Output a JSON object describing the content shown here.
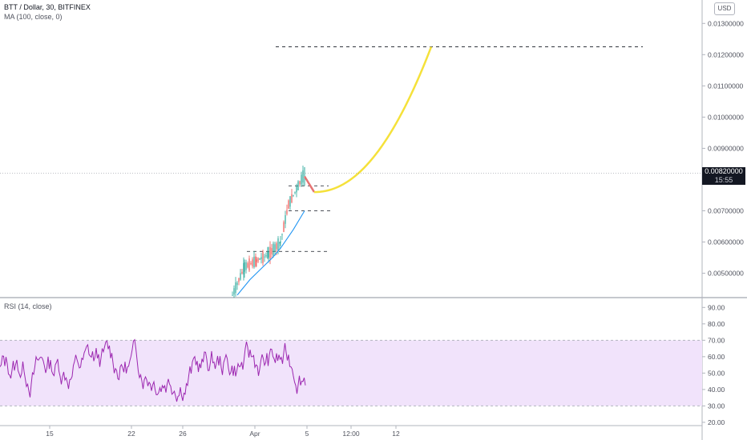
{
  "header": {
    "title": "BTT / Dollar, 30, BITFINEX",
    "ma_label": "MA (100, close, 0)",
    "currency": "USD"
  },
  "price_pane": {
    "last_price": "0.00820000",
    "countdown": "15:55",
    "y_ticks": [
      "0.01300000",
      "0.01200000",
      "0.01100000",
      "0.01000000",
      "0.00900000",
      "0.00700000",
      "0.00600000",
      "0.00500000"
    ],
    "y_tick_values": [
      0.013,
      0.012,
      0.011,
      0.01,
      0.009,
      0.007,
      0.006,
      0.005
    ],
    "last_price_value": 0.0082,
    "levels": [
      {
        "price": 0.01225,
        "from": "Apr 5",
        "to": "Apr 14"
      },
      {
        "price": 0.0078,
        "from": "Apr 4",
        "to": "Apr 5"
      },
      {
        "price": 0.007,
        "from": "Apr 4",
        "to": "Apr 5"
      },
      {
        "price": 0.0057,
        "from": "Mar 30",
        "to": "Apr 5"
      }
    ],
    "projection_color": "#f5e13a",
    "drop_color": "#e57373",
    "ma_color": "#2196f3",
    "candle_up_color": "#26a69a",
    "candle_down_color": "#ef5350"
  },
  "rsi_pane": {
    "label": "RSI (14, close)",
    "y_ticks": [
      "90.00",
      "80.00",
      "70.00",
      "60.00",
      "50.00",
      "40.00",
      "30.00",
      "20.00"
    ],
    "y_tick_values": [
      90,
      80,
      70,
      60,
      50,
      40,
      30,
      20
    ],
    "band": [
      30,
      70
    ],
    "line_color": "#9c27b0",
    "band_color": "#f1e3fb"
  },
  "x_axis": {
    "ticks": [
      "15",
      "22",
      "26",
      "Apr",
      "5",
      "12:00",
      "12"
    ]
  },
  "chart_data": {
    "type": "line",
    "title": "BTT / Dollar, 30, BITFINEX",
    "price_series_approx": [
      {
        "x": "Mar 28",
        "close": 0.0043
      },
      {
        "x": "Mar 30",
        "close": 0.0052
      },
      {
        "x": "Mar 31",
        "close": 0.0054
      },
      {
        "x": "Apr 1",
        "close": 0.0056
      },
      {
        "x": "Apr 2",
        "close": 0.006
      },
      {
        "x": "Apr 3",
        "close": 0.0072
      },
      {
        "x": "Apr 4",
        "close": 0.0077
      },
      {
        "x": "Apr 5",
        "close": 0.0082
      }
    ],
    "ma_series_approx": [
      {
        "x": "Mar 28",
        "value": 0.0043
      },
      {
        "x": "Mar 30",
        "value": 0.0048
      },
      {
        "x": "Apr 1",
        "value": 0.0055
      },
      {
        "x": "Apr 2",
        "value": 0.0058
      },
      {
        "x": "Apr 3",
        "value": 0.0064
      },
      {
        "x": "Apr 4",
        "value": 0.007
      }
    ],
    "rsi_range": [
      20,
      90
    ],
    "price_range": [
      0.0042,
      0.0135
    ]
  }
}
